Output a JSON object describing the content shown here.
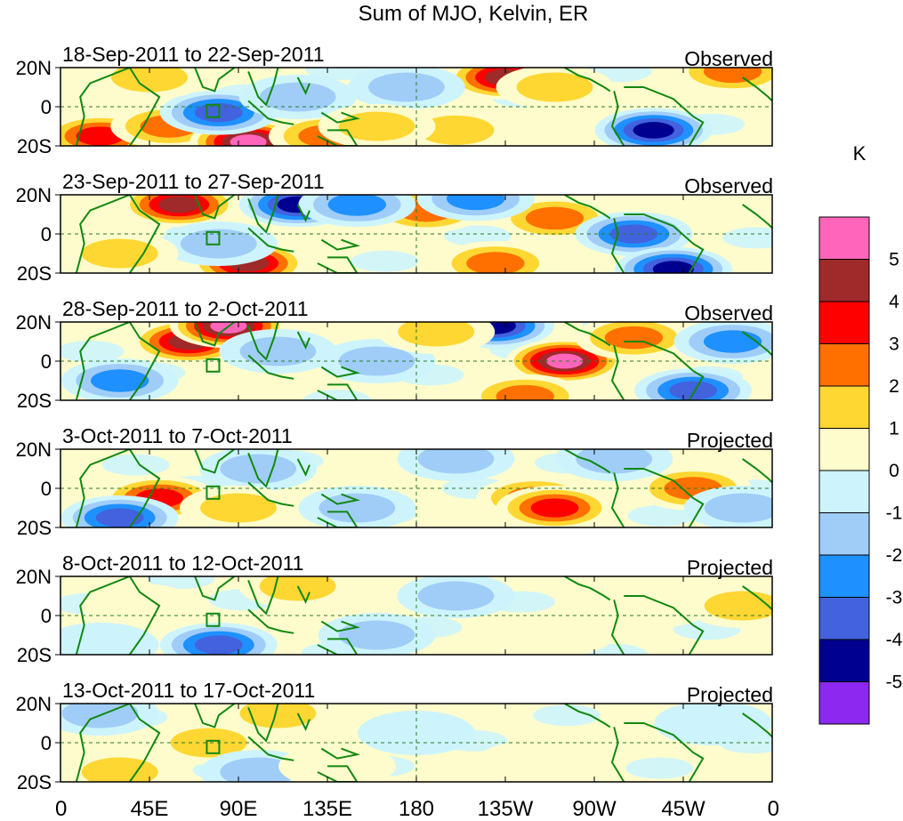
{
  "chart_data": {
    "type": "heatmap",
    "title": "Sum of MJO, Kelvin, ER",
    "units": "K",
    "x_ticks": [
      "0",
      "45E",
      "90E",
      "135E",
      "180",
      "135W",
      "90W",
      "45W",
      "0"
    ],
    "y_ticks": [
      "20N",
      "0",
      "20S"
    ],
    "x_range_deg_east": [
      0,
      360
    ],
    "y_range_deg": [
      -20,
      20
    ],
    "colorbar": {
      "labels": [
        "5",
        "4",
        "3",
        "2",
        "1",
        "0",
        "-1",
        "-2",
        "-3",
        "-4",
        "-5"
      ],
      "colors": [
        "#ff66bb",
        "#9e2a2a",
        "#ff0000",
        "#ff7000",
        "#ffd733",
        "#fefccc",
        "#cdf4fc",
        "#a0cdf8",
        "#1e90ff",
        "#4262de",
        "#000090",
        "#8c28f0"
      ]
    },
    "panels": [
      {
        "date_range": "18-Sep-2011 to 22-Sep-2011",
        "label": "Observed",
        "anomalies": [
          [
            20,
            -15,
            4
          ],
          [
            55,
            -10,
            2.5
          ],
          [
            95,
            -18,
            5.5
          ],
          [
            135,
            -15,
            3
          ],
          [
            200,
            -12,
            2
          ],
          [
            225,
            15,
            5
          ],
          [
            250,
            10,
            2
          ],
          [
            300,
            -12,
            -4.5
          ],
          [
            340,
            18,
            3
          ],
          [
            80,
            -3,
            -3.5
          ],
          [
            120,
            5,
            -2
          ],
          [
            175,
            10,
            -2
          ],
          [
            45,
            15,
            1.5
          ],
          [
            160,
            -10,
            2
          ]
        ]
      },
      {
        "date_range": "23-Sep-2011 to 27-Sep-2011",
        "label": "Observed",
        "anomalies": [
          [
            60,
            15,
            4.5
          ],
          [
            95,
            -15,
            5
          ],
          [
            120,
            15,
            -4.5
          ],
          [
            185,
            12,
            3
          ],
          [
            220,
            -15,
            3
          ],
          [
            250,
            8,
            3
          ],
          [
            290,
            0,
            -4
          ],
          [
            310,
            -18,
            -4.5
          ],
          [
            150,
            15,
            -2.5
          ],
          [
            80,
            -5,
            -2
          ],
          [
            30,
            -10,
            2
          ],
          [
            210,
            18,
            -3
          ]
        ]
      },
      {
        "date_range": "28-Sep-2011 to 2-Oct-2011",
        "label": "Observed",
        "anomalies": [
          [
            65,
            10,
            4.5
          ],
          [
            85,
            18,
            5.5
          ],
          [
            220,
            18,
            -4.5
          ],
          [
            255,
            0,
            5.5
          ],
          [
            235,
            -18,
            3
          ],
          [
            320,
            -15,
            -4
          ],
          [
            290,
            12,
            3
          ],
          [
            110,
            5,
            -2
          ],
          [
            30,
            -10,
            -2.5
          ],
          [
            160,
            0,
            -2
          ],
          [
            190,
            15,
            2
          ],
          [
            340,
            10,
            -2.5
          ]
        ]
      },
      {
        "date_range": "3-Oct-2011 to 7-Oct-2011",
        "label": "Projected",
        "anomalies": [
          [
            50,
            -5,
            3.5
          ],
          [
            30,
            -15,
            -3.5
          ],
          [
            240,
            -5,
            3
          ],
          [
            250,
            -10,
            3.5
          ],
          [
            200,
            15,
            -2
          ],
          [
            320,
            0,
            2.5
          ],
          [
            100,
            10,
            -1.5
          ],
          [
            150,
            -10,
            -1.5
          ],
          [
            280,
            15,
            -1.5
          ],
          [
            90,
            -10,
            1.5
          ],
          [
            345,
            -10,
            -1.5
          ]
        ]
      },
      {
        "date_range": "8-Oct-2011 to 12-Oct-2011",
        "label": "Projected",
        "anomalies": [
          [
            80,
            -15,
            -3.5
          ],
          [
            120,
            15,
            2
          ],
          [
            200,
            10,
            -1.5
          ],
          [
            40,
            5,
            1
          ],
          [
            250,
            -10,
            1
          ],
          [
            300,
            5,
            1
          ],
          [
            345,
            5,
            1.5
          ],
          [
            160,
            -10,
            -1.5
          ],
          [
            20,
            -15,
            -1
          ]
        ]
      },
      {
        "date_range": "13-Oct-2011 to 17-Oct-2011",
        "label": "Projected",
        "anomalies": [
          [
            75,
            0,
            2
          ],
          [
            100,
            -15,
            -2
          ],
          [
            110,
            15,
            1.5
          ],
          [
            30,
            -15,
            1.5
          ],
          [
            180,
            5,
            -1
          ],
          [
            240,
            -10,
            1
          ],
          [
            330,
            10,
            -1
          ],
          [
            20,
            15,
            -1.5
          ],
          [
            140,
            -12,
            1
          ]
        ]
      }
    ]
  }
}
